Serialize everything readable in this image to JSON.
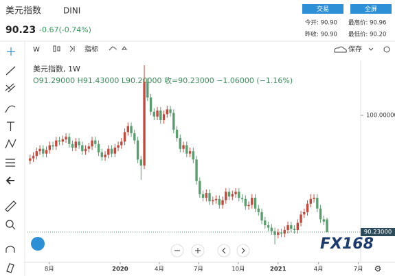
{
  "header": {
    "name": "美元指数",
    "code": "DINI",
    "price": "90.23",
    "change": "-0.67(-0.74%)",
    "buttons": [
      "交易",
      "全屏"
    ],
    "stats": [
      "今开: 90.90",
      "最高价: 90.96",
      "昨收: 90.90",
      "最低价: 90.20"
    ]
  },
  "toolbar": {
    "interval": "W",
    "indicators": "指标",
    "save": "保存"
  },
  "chart_data": {
    "type": "candlestick",
    "legend": {
      "title": "美元指数, 1W",
      "ohlc": "O91.29000  H91.43000  L90.20000  收=90.23000  −1.06000 (−1.16%)"
    },
    "up_color": "#c4493c",
    "down_color": "#5a9e6f",
    "ylim": [
      87.7,
      104.6
    ],
    "yticks": [
      {
        "value": 100,
        "label": "100.00000"
      }
    ],
    "last_price": {
      "value": 90.23,
      "label": "90.23000"
    },
    "xlim": [
      -0.8,
      101.3
    ],
    "xticks": [
      {
        "value": 5.9,
        "label": "8月"
      },
      {
        "value": 27.6,
        "label": "2020"
      },
      {
        "value": 39.6,
        "label": "4月"
      },
      {
        "value": 51.6,
        "label": "7月"
      },
      {
        "value": 63.8,
        "label": "10月"
      },
      {
        "value": 76,
        "label": "2021"
      },
      {
        "value": 88.4,
        "label": "4月"
      },
      {
        "value": 100.6,
        "label": "7月"
      }
    ],
    "ohlc": [
      [
        96.2,
        96.7,
        95.9,
        96.4
      ],
      [
        96.4,
        96.9,
        96.1,
        96.6
      ],
      [
        96.6,
        97.3,
        96.3,
        97.0
      ],
      [
        97.0,
        97.5,
        96.7,
        97.2
      ],
      [
        97.2,
        97.5,
        96.5,
        96.8
      ],
      [
        96.8,
        97.4,
        96.5,
        97.1
      ],
      [
        97.1,
        97.8,
        96.8,
        97.5
      ],
      [
        97.5,
        97.8,
        97.1,
        97.4
      ],
      [
        97.4,
        98.2,
        97.1,
        97.9
      ],
      [
        97.9,
        98.2,
        97.5,
        97.8
      ],
      [
        97.8,
        98.3,
        97.5,
        98.0
      ],
      [
        98.0,
        98.5,
        97.7,
        98.2
      ],
      [
        98.2,
        98.5,
        97.3,
        97.6
      ],
      [
        97.6,
        97.9,
        97.0,
        97.3
      ],
      [
        97.3,
        98.1,
        97.0,
        97.8
      ],
      [
        97.8,
        98.1,
        97.2,
        97.5
      ],
      [
        97.5,
        97.8,
        96.7,
        97.0
      ],
      [
        97.0,
        97.5,
        96.7,
        97.2
      ],
      [
        97.2,
        97.7,
        96.9,
        97.4
      ],
      [
        97.4,
        98.2,
        97.1,
        97.9
      ],
      [
        97.9,
        98.2,
        97.3,
        97.6
      ],
      [
        97.6,
        97.9,
        96.6,
        96.9
      ],
      [
        96.9,
        97.2,
        96.2,
        96.5
      ],
      [
        96.5,
        97.0,
        96.2,
        96.7
      ],
      [
        96.7,
        97.5,
        96.4,
        97.2
      ],
      [
        97.2,
        97.5,
        96.5,
        96.8
      ],
      [
        96.8,
        97.6,
        96.5,
        97.3
      ],
      [
        97.3,
        97.8,
        97.0,
        97.5
      ],
      [
        97.5,
        98.1,
        97.2,
        97.8
      ],
      [
        97.8,
        98.9,
        97.5,
        98.6
      ],
      [
        98.6,
        99.4,
        98.3,
        99.1
      ],
      [
        99.1,
        99.4,
        98.2,
        98.5
      ],
      [
        98.5,
        98.8,
        97.6,
        97.9
      ],
      [
        97.9,
        98.2,
        96.0,
        96.3
      ],
      [
        96.3,
        96.6,
        94.6,
        95.8
      ],
      [
        95.8,
        104.2,
        95.5,
        102.8
      ],
      [
        102.8,
        103.1,
        101.2,
        101.5
      ],
      [
        101.5,
        101.8,
        100.0,
        100.3
      ],
      [
        100.3,
        100.6,
        99.6,
        99.9
      ],
      [
        99.9,
        100.7,
        99.6,
        100.4
      ],
      [
        100.4,
        100.7,
        99.3,
        99.6
      ],
      [
        99.6,
        100.4,
        99.3,
        100.1
      ],
      [
        100.1,
        100.8,
        99.8,
        100.5
      ],
      [
        100.5,
        100.8,
        99.9,
        100.2
      ],
      [
        100.2,
        100.5,
        98.5,
        98.8
      ],
      [
        98.8,
        99.1,
        97.8,
        98.1
      ],
      [
        98.1,
        98.4,
        96.9,
        97.2
      ],
      [
        97.2,
        97.8,
        96.9,
        97.5
      ],
      [
        97.5,
        97.8,
        96.5,
        96.8
      ],
      [
        96.8,
        97.3,
        96.5,
        97.0
      ],
      [
        97.0,
        97.3,
        96.0,
        96.3
      ],
      [
        96.3,
        96.6,
        94.2,
        94.5
      ],
      [
        94.5,
        94.8,
        93.1,
        93.4
      ],
      [
        93.4,
        93.7,
        92.8,
        93.1
      ],
      [
        93.1,
        93.8,
        92.8,
        93.5
      ],
      [
        93.5,
        93.8,
        92.5,
        92.8
      ],
      [
        92.8,
        93.2,
        92.5,
        92.9
      ],
      [
        92.9,
        93.3,
        92.6,
        93.0
      ],
      [
        93.0,
        93.3,
        92.2,
        92.5
      ],
      [
        92.5,
        93.2,
        92.2,
        92.9
      ],
      [
        92.9,
        93.9,
        92.6,
        93.6
      ],
      [
        93.6,
        93.9,
        92.9,
        93.2
      ],
      [
        93.2,
        93.7,
        92.9,
        93.4
      ],
      [
        93.4,
        93.9,
        93.1,
        93.6
      ],
      [
        93.6,
        93.9,
        92.8,
        93.1
      ],
      [
        93.1,
        93.4,
        92.7,
        93.0
      ],
      [
        93.0,
        93.3,
        92.1,
        92.4
      ],
      [
        92.4,
        92.8,
        92.1,
        92.5
      ],
      [
        92.5,
        93.4,
        92.2,
        93.1
      ],
      [
        93.1,
        93.4,
        91.9,
        92.2
      ],
      [
        92.2,
        92.5,
        91.6,
        91.9
      ],
      [
        91.9,
        92.2,
        90.9,
        91.2
      ],
      [
        91.2,
        91.5,
        90.5,
        90.8
      ],
      [
        90.8,
        91.1,
        90.3,
        90.6
      ],
      [
        90.6,
        90.9,
        90.0,
        90.3
      ],
      [
        90.3,
        90.6,
        89.2,
        90.0
      ],
      [
        90.0,
        90.5,
        89.7,
        90.2
      ],
      [
        90.2,
        90.5,
        89.8,
        90.1
      ],
      [
        90.1,
        90.7,
        89.8,
        90.4
      ],
      [
        90.4,
        91.1,
        90.1,
        90.8
      ],
      [
        90.8,
        91.1,
        90.2,
        90.5
      ],
      [
        90.5,
        90.8,
        90.1,
        90.4
      ],
      [
        90.4,
        91.3,
        90.1,
        91.0
      ],
      [
        91.0,
        92.0,
        90.7,
        91.7
      ],
      [
        91.7,
        92.2,
        91.4,
        91.9
      ],
      [
        91.9,
        92.9,
        91.6,
        92.6
      ],
      [
        92.6,
        93.4,
        92.3,
        93.0
      ],
      [
        93.0,
        93.4,
        92.7,
        93.1
      ],
      [
        93.1,
        93.4,
        91.9,
        92.2
      ],
      [
        92.2,
        92.5,
        91.0,
        91.3
      ],
      [
        91.3,
        91.6,
        90.8,
        91.1
      ],
      [
        91.29,
        91.43,
        90.2,
        90.23
      ]
    ]
  },
  "logo": "FX168"
}
